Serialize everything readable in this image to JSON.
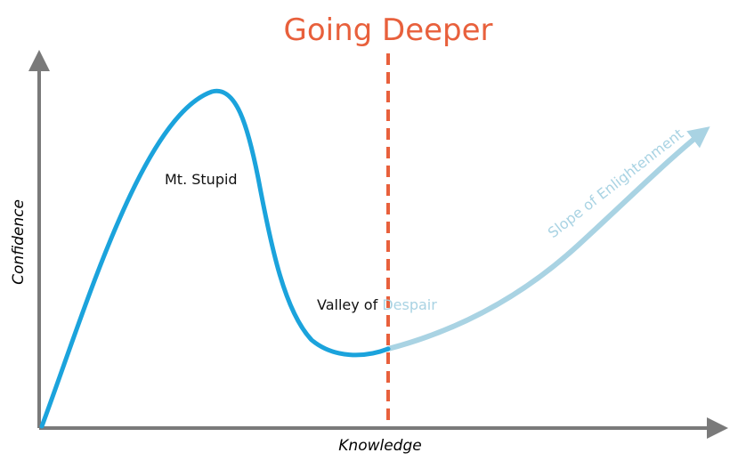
{
  "diagram": {
    "title": "Going Deeper",
    "x_axis_label": "Knowledge",
    "y_axis_label": "Confidence",
    "labels": {
      "peak": "Mt. Stupid",
      "valley_prefix": "Valley of ",
      "valley_suffix": "Despair",
      "slope": "Slope of Enlightenment"
    },
    "colors": {
      "title": "#e8603c",
      "divider": "#e8603c",
      "curve_dark": "#1ba3dc",
      "curve_light": "#a9d3e3",
      "axis": "#7a7a7a"
    }
  }
}
